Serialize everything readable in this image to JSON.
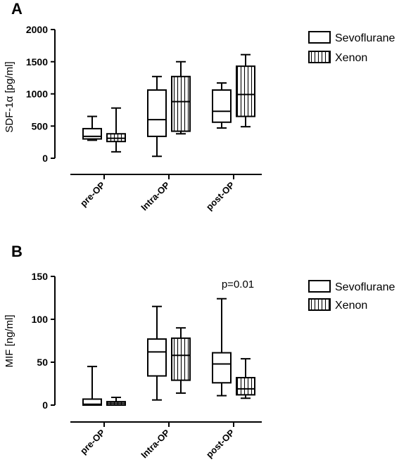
{
  "chart_data": [
    {
      "type": "box",
      "panel_label": "A",
      "ylabel": "SDF-1α [pg/ml]",
      "ylim": [
        0,
        2000
      ],
      "yticks": [
        0,
        500,
        1000,
        1500,
        2000
      ],
      "ytick_labels": [
        "0",
        "500",
        "1000",
        "1500",
        "2000"
      ],
      "categories": [
        "pre-OP",
        "Intra-OP",
        "post-OP"
      ],
      "legend": {
        "placement": "top-right",
        "entries": [
          "Sevoflurane",
          "Xenon"
        ]
      },
      "annotation": "",
      "series": [
        {
          "name": "Sevoflurane",
          "fill": "plain",
          "boxes": [
            {
              "min": 280,
              "q1": 300,
              "median": 340,
              "q3": 460,
              "max": 650
            },
            {
              "min": 30,
              "q1": 340,
              "median": 600,
              "q3": 1060,
              "max": 1270
            },
            {
              "min": 470,
              "q1": 560,
              "median": 730,
              "q3": 1060,
              "max": 1170
            }
          ]
        },
        {
          "name": "Xenon",
          "fill": "vertical-hatch",
          "boxes": [
            {
              "min": 100,
              "q1": 260,
              "median": 310,
              "q3": 380,
              "max": 780
            },
            {
              "min": 380,
              "q1": 420,
              "median": 880,
              "q3": 1270,
              "max": 1500
            },
            {
              "min": 490,
              "q1": 650,
              "median": 990,
              "q3": 1430,
              "max": 1610
            }
          ]
        }
      ]
    },
    {
      "type": "box",
      "panel_label": "B",
      "ylabel": "MIF [ng/ml]",
      "ylim": [
        0,
        150
      ],
      "yticks": [
        0,
        50,
        100,
        150
      ],
      "ytick_labels": [
        "0",
        "50",
        "100",
        "150"
      ],
      "categories": [
        "pre-OP",
        "Intra-OP",
        "post-OP"
      ],
      "legend": {
        "placement": "top-right",
        "entries": [
          "Sevoflurane",
          "Xenon"
        ]
      },
      "annotation": "p=0.01",
      "series": [
        {
          "name": "Sevoflurane",
          "fill": "plain",
          "boxes": [
            {
              "min": 0,
              "q1": 0,
              "median": 1,
              "q3": 7,
              "max": 45
            },
            {
              "min": 6,
              "q1": 34,
              "median": 62,
              "q3": 77,
              "max": 115
            },
            {
              "min": 11,
              "q1": 26,
              "median": 48,
              "q3": 61,
              "max": 124
            }
          ]
        },
        {
          "name": "Xenon",
          "fill": "vertical-hatch",
          "boxes": [
            {
              "min": 0,
              "q1": 0,
              "median": 2,
              "q3": 4,
              "max": 9
            },
            {
              "min": 14,
              "q1": 29,
              "median": 58,
              "q3": 78,
              "max": 90
            },
            {
              "min": 8,
              "q1": 12,
              "median": 19,
              "q3": 32,
              "max": 54
            }
          ]
        }
      ]
    }
  ]
}
